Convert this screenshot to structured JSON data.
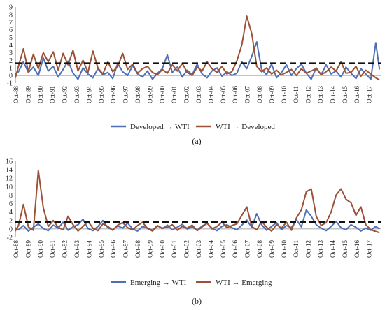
{
  "chart_data": [
    {
      "type": "line",
      "panel_label": "(a)",
      "ylim": [
        -1,
        9
      ],
      "yticks": [
        -1,
        0,
        1,
        2,
        3,
        4,
        5,
        6,
        7,
        8,
        9
      ],
      "x_tick_labels": [
        "Oct-88",
        "Oct-89",
        "Oct-90",
        "Oct-91",
        "Oct-92",
        "Oct-93",
        "Oct-94",
        "Oct-95",
        "Oct-96",
        "Oct-97",
        "Oct-98",
        "Oct-99",
        "Oct-00",
        "Oct-01",
        "Oct-02",
        "Oct-03",
        "Oct-04",
        "Oct-05",
        "Oct-06",
        "Oct-07",
        "Oct-08",
        "Oct-09",
        "Oct-10",
        "Oct-11",
        "Oct-12",
        "Oct-13",
        "Oct-14",
        "Oct-15",
        "Oct-16",
        "Oct-17"
      ],
      "x_range": [
        1988.75,
        2018.2
      ],
      "threshold": 1.6,
      "legend": "bottom-center",
      "series": [
        {
          "name": "Developed → WTI",
          "color": "#4e6fb6",
          "x": [
            1988.75,
            1989.0,
            1989.4,
            1989.8,
            1990.2,
            1990.6,
            1991.0,
            1991.4,
            1991.8,
            1992.2,
            1992.6,
            1993.0,
            1993.4,
            1993.8,
            1994.2,
            1994.6,
            1995.0,
            1995.4,
            1995.8,
            1996.2,
            1996.6,
            1997.0,
            1997.4,
            1997.8,
            1998.2,
            1998.6,
            1999.0,
            1999.4,
            1999.8,
            2000.2,
            2000.6,
            2001.0,
            2001.4,
            2001.8,
            2002.2,
            2002.6,
            2003.0,
            2003.4,
            2003.8,
            2004.2,
            2004.6,
            2005.0,
            2005.4,
            2005.8,
            2006.2,
            2006.6,
            2007.0,
            2007.4,
            2007.8,
            2008.2,
            2008.6,
            2009.0,
            2009.4,
            2009.8,
            2010.2,
            2010.6,
            2011.0,
            2011.4,
            2011.8,
            2012.2,
            2012.6,
            2013.0,
            2013.4,
            2013.8,
            2014.2,
            2014.6,
            2015.0,
            2015.4,
            2015.8,
            2016.2,
            2016.6,
            2017.0,
            2017.4,
            2017.8,
            2018.1
          ],
          "y": [
            0.2,
            0.5,
            1.8,
            0.4,
            1.1,
            0.0,
            2.3,
            0.6,
            1.2,
            -0.2,
            0.8,
            1.9,
            0.3,
            -0.5,
            1.0,
            0.2,
            -0.3,
            0.9,
            0.1,
            0.4,
            -0.4,
            1.6,
            0.5,
            0.0,
            1.3,
            0.2,
            -0.2,
            0.6,
            -0.5,
            0.3,
            0.9,
            2.7,
            0.4,
            1.1,
            -0.2,
            0.7,
            0.1,
            1.5,
            0.2,
            -0.3,
            0.6,
            1.0,
            -0.1,
            0.5,
            0.0,
            0.3,
            1.8,
            0.9,
            2.5,
            4.4,
            0.8,
            0.1,
            1.5,
            -0.3,
            0.4,
            1.4,
            0.0,
            0.9,
            1.5,
            0.3,
            -0.5,
            1.0,
            0.1,
            1.4,
            0.2,
            0.6,
            -0.2,
            1.1,
            0.3,
            -0.4,
            0.9,
            0.2,
            -0.5,
            4.3,
            0.8
          ]
        },
        {
          "name": "WTI → Developed",
          "color": "#9b5136",
          "x": [
            1988.75,
            1989.0,
            1989.4,
            1989.8,
            1990.2,
            1990.6,
            1991.0,
            1991.4,
            1991.8,
            1992.2,
            1992.6,
            1993.0,
            1993.4,
            1993.8,
            1994.2,
            1994.6,
            1995.0,
            1995.4,
            1995.8,
            1996.2,
            1996.6,
            1997.0,
            1997.4,
            1997.8,
            1998.2,
            1998.6,
            1999.0,
            1999.4,
            1999.8,
            2000.2,
            2000.6,
            2001.0,
            2001.4,
            2001.8,
            2002.2,
            2002.6,
            2003.0,
            2003.4,
            2003.8,
            2004.2,
            2004.6,
            2005.0,
            2005.4,
            2005.8,
            2006.2,
            2006.6,
            2007.0,
            2007.4,
            2007.8,
            2008.2,
            2008.6,
            2009.0,
            2009.4,
            2009.8,
            2010.2,
            2010.6,
            2011.0,
            2011.4,
            2011.8,
            2012.2,
            2012.6,
            2013.0,
            2013.4,
            2013.8,
            2014.2,
            2014.6,
            2015.0,
            2015.4,
            2015.8,
            2016.2,
            2016.6,
            2017.0,
            2017.4,
            2017.8,
            2018.1
          ],
          "y": [
            -0.3,
            1.2,
            3.5,
            0.5,
            2.8,
            0.9,
            3.0,
            1.8,
            3.1,
            0.7,
            2.9,
            1.4,
            3.3,
            0.6,
            2.0,
            0.4,
            3.2,
            1.0,
            0.2,
            1.8,
            0.5,
            1.2,
            2.9,
            0.8,
            1.5,
            0.3,
            0.9,
            1.2,
            0.4,
            0.1,
            0.8,
            0.3,
            1.4,
            0.6,
            1.6,
            0.4,
            0.0,
            1.1,
            0.6,
            1.8,
            0.9,
            0.4,
            1.2,
            0.2,
            0.5,
            1.9,
            4.0,
            7.8,
            5.5,
            1.2,
            0.5,
            1.0,
            0.2,
            0.7,
            0.1,
            0.4,
            0.8,
            0.0,
            0.9,
            0.3,
            0.6,
            0.9,
            0.1,
            0.5,
            1.1,
            0.6,
            1.8,
            0.3,
            0.4,
            1.2,
            -0.1,
            0.7,
            0.2,
            -0.3,
            -0.6
          ]
        }
      ]
    },
    {
      "type": "line",
      "panel_label": "(b)",
      "ylim": [
        -2,
        16
      ],
      "yticks": [
        -2,
        0,
        2,
        4,
        6,
        8,
        10,
        12,
        14,
        16
      ],
      "x_tick_labels": [
        "Oct-88",
        "Oct-89",
        "Oct-90",
        "Oct-91",
        "Oct-92",
        "Oct-93",
        "Oct-94",
        "Oct-95",
        "Oct-96",
        "Oct-97",
        "Oct-98",
        "Oct-99",
        "Oct-00",
        "Oct-01",
        "Oct-02",
        "Oct-03",
        "Oct-04",
        "Oct-05",
        "Oct-06",
        "Oct-07",
        "Oct-08",
        "Oct-09",
        "Oct-10",
        "Oct-11",
        "Oct-12",
        "Oct-13",
        "Oct-14",
        "Oct-15",
        "Oct-16",
        "Oct-17"
      ],
      "x_range": [
        1988.75,
        2018.2
      ],
      "threshold": 1.6,
      "legend": "bottom-center",
      "series": [
        {
          "name": "Emerging  → WTI",
          "color": "#4e6fb6",
          "x": [
            1988.75,
            1989.0,
            1989.4,
            1989.8,
            1990.2,
            1990.6,
            1991.0,
            1991.4,
            1991.8,
            1992.2,
            1992.6,
            1993.0,
            1993.4,
            1993.8,
            1994.2,
            1994.6,
            1995.0,
            1995.4,
            1995.8,
            1996.2,
            1996.6,
            1997.0,
            1997.4,
            1997.8,
            1998.2,
            1998.6,
            1999.0,
            1999.4,
            1999.8,
            2000.2,
            2000.6,
            2001.0,
            2001.4,
            2001.8,
            2002.2,
            2002.6,
            2003.0,
            2003.4,
            2003.8,
            2004.2,
            2004.6,
            2005.0,
            2005.4,
            2005.8,
            2006.2,
            2006.6,
            2007.0,
            2007.4,
            2007.8,
            2008.2,
            2008.6,
            2009.0,
            2009.4,
            2009.8,
            2010.2,
            2010.6,
            2011.0,
            2011.4,
            2011.8,
            2012.2,
            2012.6,
            2013.0,
            2013.4,
            2013.8,
            2014.2,
            2014.6,
            2015.0,
            2015.4,
            2015.8,
            2016.2,
            2016.6,
            2017.0,
            2017.4,
            2017.8,
            2018.1
          ],
          "y": [
            0.3,
            -0.2,
            0.8,
            -0.5,
            0.4,
            1.2,
            0.1,
            -0.4,
            0.9,
            0.2,
            1.6,
            -0.3,
            0.5,
            1.0,
            2.3,
            0.1,
            -0.4,
            0.6,
            2.0,
            0.3,
            -0.2,
            0.7,
            0.2,
            1.4,
            0.0,
            -0.5,
            0.6,
            0.2,
            -0.3,
            0.8,
            0.1,
            0.9,
            -0.2,
            0.4,
            1.1,
            0.0,
            0.5,
            -0.3,
            0.7,
            1.3,
            0.2,
            -0.4,
            0.6,
            1.0,
            0.3,
            -0.2,
            0.9,
            2.1,
            0.4,
            3.6,
            1.0,
            -0.3,
            0.6,
            1.5,
            -0.2,
            0.8,
            0.3,
            2.2,
            0.5,
            4.5,
            3.0,
            1.0,
            0.2,
            -0.4,
            0.6,
            1.8,
            0.3,
            -0.2,
            1.0,
            0.4,
            -0.5,
            0.2,
            -0.3,
            0.6,
            0.0
          ]
        },
        {
          "name": "WTI → Emerging",
          "color": "#9b5136",
          "x": [
            1988.75,
            1989.0,
            1989.4,
            1989.8,
            1990.2,
            1990.6,
            1991.0,
            1991.4,
            1991.8,
            1992.2,
            1992.6,
            1993.0,
            1993.4,
            1993.8,
            1994.2,
            1994.6,
            1995.0,
            1995.4,
            1995.8,
            1996.2,
            1996.6,
            1997.0,
            1997.4,
            1997.8,
            1998.2,
            1998.6,
            1999.0,
            1999.4,
            1999.8,
            2000.2,
            2000.6,
            2001.0,
            2001.4,
            2001.8,
            2002.2,
            2002.6,
            2003.0,
            2003.4,
            2003.8,
            2004.2,
            2004.6,
            2005.0,
            2005.4,
            2005.8,
            2006.2,
            2006.6,
            2007.0,
            2007.4,
            2007.8,
            2008.2,
            2008.6,
            2009.0,
            2009.4,
            2009.8,
            2010.2,
            2010.6,
            2011.0,
            2011.4,
            2011.8,
            2012.2,
            2012.6,
            2013.0,
            2013.4,
            2013.8,
            2014.2,
            2014.6,
            2015.0,
            2015.4,
            2015.8,
            2016.2,
            2016.6,
            2017.0,
            2017.4,
            2017.8,
            2018.1
          ],
          "y": [
            -0.5,
            0.8,
            5.8,
            0.5,
            -0.3,
            13.8,
            5.0,
            0.6,
            2.0,
            0.4,
            -0.2,
            3.0,
            1.0,
            -0.5,
            0.6,
            1.8,
            0.2,
            -0.4,
            1.2,
            0.6,
            -0.3,
            0.9,
            1.5,
            0.3,
            -0.2,
            0.8,
            1.6,
            0.1,
            -0.5,
            0.7,
            0.2,
            0.4,
            1.0,
            -0.3,
            0.6,
            0.2,
            0.9,
            -0.4,
            0.5,
            1.4,
            0.0,
            0.6,
            1.6,
            0.3,
            0.8,
            1.2,
            3.2,
            5.2,
            0.6,
            -0.2,
            1.8,
            0.4,
            -0.5,
            1.0,
            0.2,
            1.6,
            -0.3,
            2.6,
            4.5,
            8.8,
            9.5,
            3.0,
            0.8,
            1.5,
            4.0,
            8.0,
            9.5,
            7.0,
            6.2,
            3.2,
            5.2,
            1.0,
            -0.2,
            -0.6,
            -0.9
          ]
        }
      ]
    }
  ]
}
